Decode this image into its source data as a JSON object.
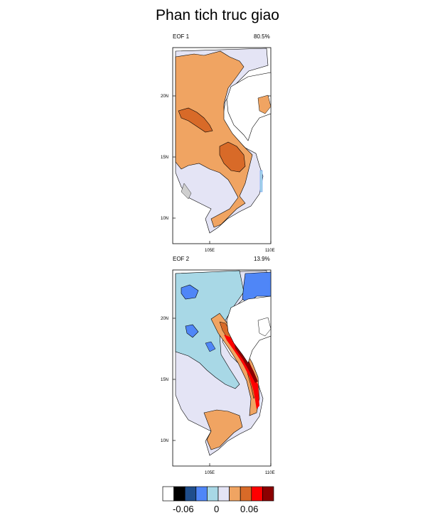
{
  "title": "Phan tich truc giao",
  "panels": [
    {
      "label": "EOF 1",
      "variance": "80.5%",
      "lat_ticks": [
        "20N",
        "15N",
        "10N"
      ],
      "lon_ticks": [
        "105E",
        "110E"
      ]
    },
    {
      "label": "EOF 2",
      "variance": "13.9%",
      "lat_ticks": [
        "20N",
        "15N",
        "10N"
      ],
      "lon_ticks": [
        "105E",
        "110E"
      ]
    }
  ],
  "colorbar": {
    "colors": [
      "#ffffff",
      "#000000",
      "#1f4e8c",
      "#4f86f7",
      "#a8d8e6",
      "#e4e4f5",
      "#f0a462",
      "#d86a28",
      "#ff0000",
      "#8b0000"
    ],
    "labels": [
      "-0.06",
      "0",
      "0.06"
    ]
  }
}
